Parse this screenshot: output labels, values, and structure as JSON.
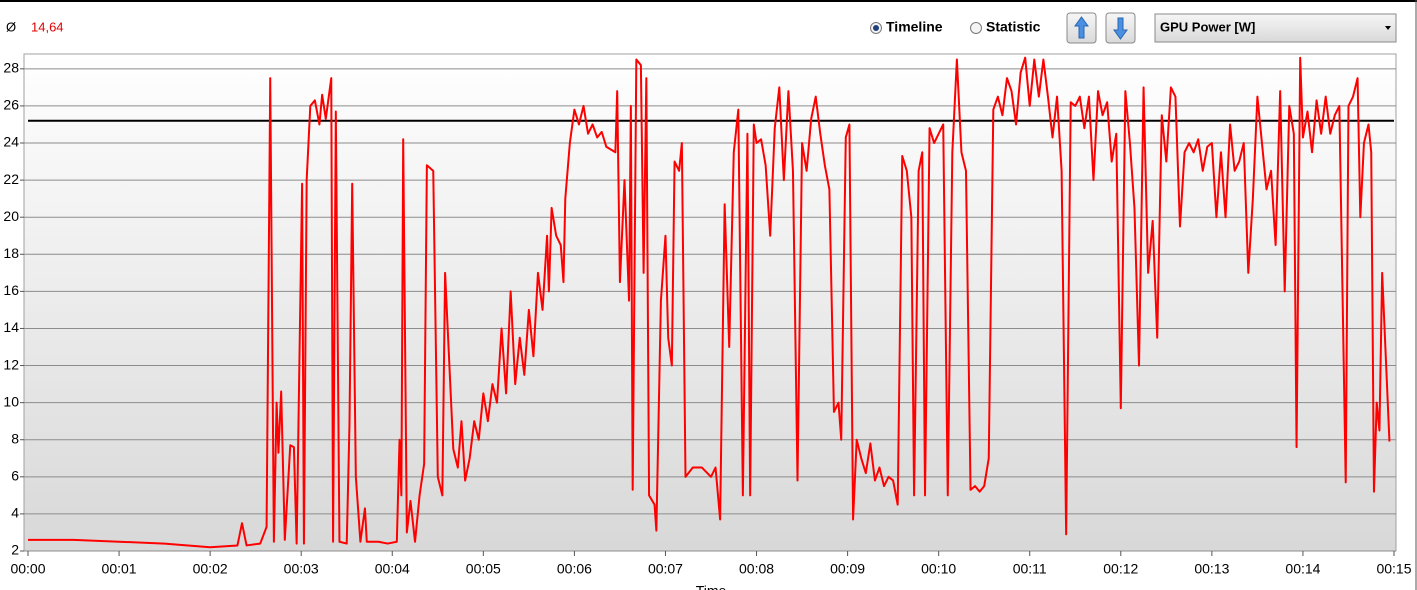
{
  "toolbar": {
    "avg_symbol": "Ø",
    "avg_value": "14,64",
    "radio_options": [
      {
        "label": "Timeline",
        "selected": true
      },
      {
        "label": "Statistic",
        "selected": false
      }
    ],
    "dropdown": "GPU Power [W]"
  },
  "chart_data": {
    "type": "line",
    "xlabel": "Time",
    "color": "#ff0000",
    "grid": true,
    "reference_line": {
      "value": 25.2,
      "color": "#000000"
    },
    "xlim": [
      0,
      15
    ],
    "xticks": [
      {
        "value": 0,
        "label": "00:00"
      },
      {
        "value": 1,
        "label": "00:01"
      },
      {
        "value": 2,
        "label": "00:02"
      },
      {
        "value": 3,
        "label": "00:03"
      },
      {
        "value": 4,
        "label": "00:04"
      },
      {
        "value": 5,
        "label": "00:05"
      },
      {
        "value": 6,
        "label": "00:06"
      },
      {
        "value": 7,
        "label": "00:07"
      },
      {
        "value": 8,
        "label": "00:08"
      },
      {
        "value": 9,
        "label": "00:09"
      },
      {
        "value": 10,
        "label": "00:10"
      },
      {
        "value": 11,
        "label": "00:11"
      },
      {
        "value": 12,
        "label": "00:12"
      },
      {
        "value": 13,
        "label": "00:13"
      },
      {
        "value": 14,
        "label": "00:14"
      },
      {
        "value": 15,
        "label": "00:15"
      }
    ],
    "ylim": [
      2,
      28.8
    ],
    "yticks": [
      2,
      4,
      6,
      8,
      10,
      12,
      14,
      16,
      18,
      20,
      22,
      24,
      26,
      28
    ],
    "x": [
      0,
      0.5,
      1,
      1.5,
      2,
      2.3,
      2.35,
      2.4,
      2.55,
      2.62,
      2.66,
      2.7,
      2.73,
      2.75,
      2.78,
      2.82,
      2.88,
      2.92,
      2.95,
      3.01,
      3.03,
      3.06,
      3.1,
      3.15,
      3.2,
      3.23,
      3.27,
      3.33,
      3.35,
      3.38,
      3.42,
      3.5,
      3.53,
      3.56,
      3.6,
      3.65,
      3.7,
      3.72,
      3.85,
      3.95,
      4.05,
      4.08,
      4.1,
      4.12,
      4.16,
      4.2,
      4.25,
      4.3,
      4.35,
      4.38,
      4.45,
      4.5,
      4.55,
      4.58,
      4.67,
      4.72,
      4.76,
      4.8,
      4.85,
      4.9,
      4.95,
      5,
      5.05,
      5.1,
      5.15,
      5.2,
      5.25,
      5.3,
      5.35,
      5.4,
      5.45,
      5.5,
      5.55,
      5.6,
      5.65,
      5.7,
      5.72,
      5.75,
      5.8,
      5.85,
      5.88,
      5.9,
      5.95,
      6,
      6.05,
      6.1,
      6.15,
      6.2,
      6.25,
      6.3,
      6.35,
      6.45,
      6.47,
      6.5,
      6.55,
      6.6,
      6.62,
      6.64,
      6.68,
      6.73,
      6.76,
      6.79,
      6.82,
      6.88,
      6.9,
      6.95,
      7,
      7.03,
      7.07,
      7.1,
      7.15,
      7.18,
      7.22,
      7.3,
      7.4,
      7.5,
      7.55,
      7.6,
      7.65,
      7.7,
      7.75,
      7.8,
      7.85,
      7.9,
      7.93,
      7.97,
      8,
      8.05,
      8.1,
      8.15,
      8.2,
      8.25,
      8.3,
      8.35,
      8.4,
      8.45,
      8.5,
      8.55,
      8.6,
      8.65,
      8.7,
      8.75,
      8.8,
      8.85,
      8.9,
      8.93,
      8.98,
      9.02,
      9.06,
      9.1,
      9.15,
      9.2,
      9.25,
      9.3,
      9.35,
      9.4,
      9.45,
      9.5,
      9.55,
      9.6,
      9.65,
      9.7,
      9.73,
      9.78,
      9.82,
      9.85,
      9.9,
      9.95,
      10,
      10.05,
      10.1,
      10.15,
      10.2,
      10.25,
      10.3,
      10.35,
      10.4,
      10.45,
      10.5,
      10.55,
      10.6,
      10.65,
      10.7,
      10.75,
      10.8,
      10.85,
      10.9,
      10.95,
      11,
      11.05,
      11.1,
      11.15,
      11.2,
      11.25,
      11.3,
      11.35,
      11.4,
      11.45,
      11.5,
      11.55,
      11.6,
      11.65,
      11.7,
      11.75,
      11.8,
      11.85,
      11.9,
      11.95,
      12,
      12.05,
      12.1,
      12.15,
      12.2,
      12.25,
      12.3,
      12.35,
      12.4,
      12.45,
      12.5,
      12.55,
      12.6,
      12.65,
      12.7,
      12.75,
      12.8,
      12.85,
      12.9,
      12.95,
      13,
      13.05,
      13.1,
      13.15,
      13.2,
      13.25,
      13.3,
      13.35,
      13.4,
      13.45,
      13.5,
      13.55,
      13.6,
      13.65,
      13.7,
      13.75,
      13.8,
      13.85,
      13.9,
      13.93,
      13.97,
      14,
      14.05,
      14.1,
      14.15,
      14.2,
      14.25,
      14.3,
      14.35,
      14.4,
      14.47,
      14.5,
      14.55,
      14.6,
      14.63,
      14.67,
      14.72,
      14.75,
      14.78,
      14.81,
      14.84,
      14.87,
      14.95
    ],
    "values": [
      2.6,
      2.6,
      2.5,
      2.4,
      2.2,
      2.3,
      3.5,
      2.3,
      2.4,
      3.3,
      27.5,
      2.5,
      10,
      7.3,
      10.6,
      2.6,
      7.7,
      7.6,
      2.4,
      21.8,
      2.4,
      22,
      26,
      26.3,
      25,
      26.6,
      25.3,
      27.5,
      2.5,
      25.7,
      2.5,
      2.4,
      8.8,
      21.8,
      6,
      2.5,
      4.3,
      2.5,
      2.5,
      2.4,
      2.5,
      8,
      5,
      24.2,
      3,
      4.7,
      2.5,
      5,
      6.7,
      22.8,
      22.5,
      6,
      5,
      17,
      7.5,
      6.5,
      9,
      5.8,
      7,
      9,
      8,
      10.5,
      9,
      11,
      10,
      14,
      10.5,
      16,
      11,
      13.5,
      11.5,
      15,
      12.5,
      17,
      15,
      19,
      16,
      20.5,
      19,
      18.5,
      16.5,
      21,
      24,
      25.8,
      25,
      26,
      24.5,
      25,
      24.3,
      24.6,
      23.8,
      23.5,
      26.8,
      16.5,
      22,
      15.5,
      26,
      5.3,
      28.5,
      28.2,
      17,
      27.5,
      5,
      4.5,
      3.1,
      15.5,
      19,
      13.5,
      12,
      23,
      22.5,
      24,
      6,
      6.5,
      6.5,
      6,
      6.5,
      3.7,
      20.7,
      13,
      23.5,
      25.8,
      5,
      24.5,
      5,
      25,
      24,
      24.2,
      22.8,
      19,
      24.8,
      27,
      22,
      26.8,
      22.5,
      5.8,
      24,
      22.5,
      25.3,
      26.5,
      24.5,
      22.8,
      21.5,
      9.5,
      10,
      8,
      24.3,
      25,
      3.7,
      8,
      7,
      6.2,
      7.8,
      5.8,
      6.5,
      5.5,
      6,
      5.8,
      4.5,
      23.3,
      22.5,
      20,
      5,
      22.5,
      23.5,
      5,
      24.8,
      24,
      24.5,
      25,
      5,
      23.5,
      28.5,
      23.5,
      22.5,
      5.3,
      5.5,
      5.2,
      5.5,
      7,
      25.8,
      26.5,
      25.5,
      27.5,
      26.8,
      25,
      27.8,
      28.6,
      26,
      28.5,
      26.5,
      28.5,
      26.5,
      24.3,
      26.5,
      22.5,
      2.9,
      26.2,
      26,
      26.5,
      24.8,
      26.5,
      22,
      26.8,
      25.5,
      26.2,
      23,
      24.5,
      9.7,
      26.8,
      24,
      20.5,
      12,
      27,
      17,
      19.8,
      13.5,
      25.5,
      23,
      27,
      26.5,
      19.5,
      23.5,
      24,
      23.5,
      24.2,
      22.5,
      23.8,
      24,
      20,
      23.5,
      20,
      25,
      22.5,
      23,
      24,
      17,
      21,
      26.5,
      24,
      21.5,
      22.5,
      18.5,
      26.8,
      16,
      26,
      24.5,
      7.6,
      28.6,
      24.3,
      25.7,
      23.5,
      26.3,
      24.5,
      26.5,
      24.5,
      25.5,
      26,
      5.7,
      26,
      26.5,
      27.5,
      20,
      24,
      25,
      23.5,
      5.2,
      10,
      8.5,
      17,
      7.9
    ]
  }
}
